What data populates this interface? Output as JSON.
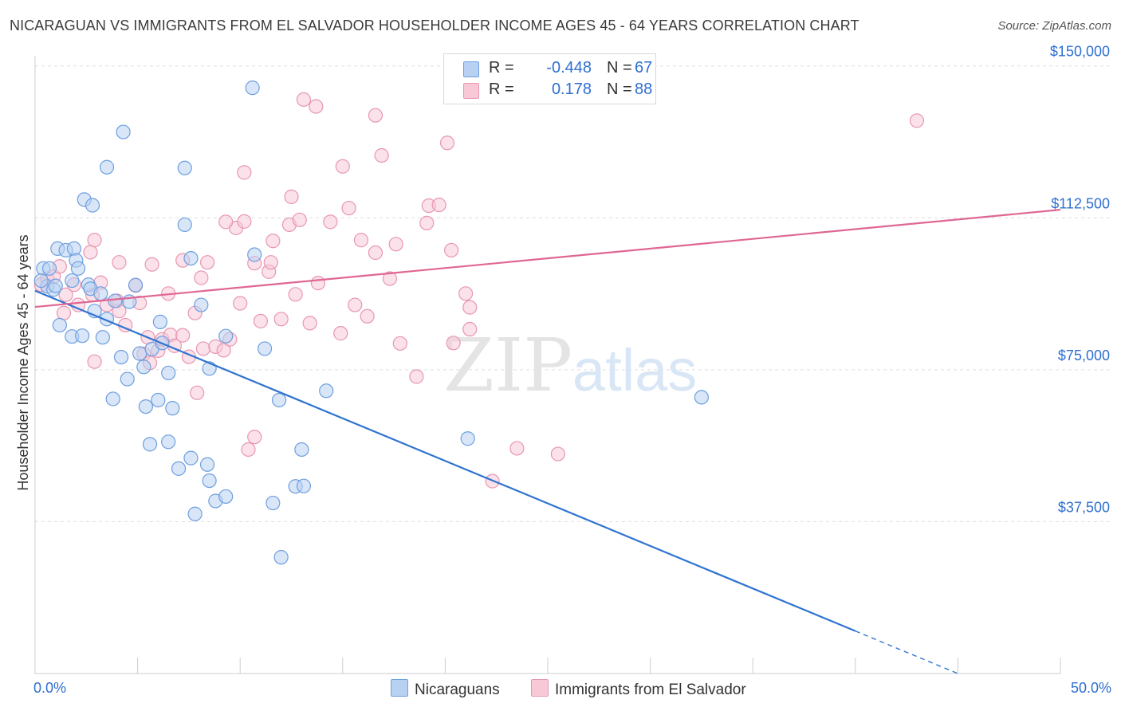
{
  "title": "NICARAGUAN VS IMMIGRANTS FROM EL SALVADOR HOUSEHOLDER INCOME AGES 45 - 64 YEARS CORRELATION CHART",
  "source": "Source: ZipAtlas.com",
  "watermark": {
    "zip": "ZIP",
    "atlas": "atlas"
  },
  "legend": {
    "rows": [
      {
        "r_label": "R =",
        "r_value": "-0.448",
        "n_label": "N =",
        "n_value": "67"
      },
      {
        "r_label": "R =",
        "r_value": "0.178",
        "n_label": "N =",
        "n_value": "88"
      }
    ]
  },
  "bottom_legend": [
    "Nicaraguans",
    "Immigrants from El Salvador"
  ],
  "colors": {
    "blue_fill": "#b8d1f3",
    "blue_stroke": "#6e9fdf",
    "blue_line": "#2f74d0",
    "pink_fill": "#f8c8d7",
    "pink_stroke": "#e897b1",
    "pink_line": "#e06694",
    "tick_label": "#2e6fd1",
    "grid": "#dedede"
  },
  "chart_data": {
    "type": "scatter",
    "title": "NICARAGUAN VS IMMIGRANTS FROM EL SALVADOR HOUSEHOLDER INCOME AGES 45 - 64 YEARS CORRELATION CHART",
    "xlabel": "",
    "ylabel": "Householder Income Ages 45 - 64 years",
    "x_unit": "percent",
    "xlim": [
      0,
      50
    ],
    "ylim": [
      0,
      152500
    ],
    "x_tick_labels": [
      "0.0%",
      "50.0%"
    ],
    "y_ticks": [
      {
        "value": 37500,
        "label": "$37,500"
      },
      {
        "value": 75000,
        "label": "$75,000"
      },
      {
        "value": 112500,
        "label": "$112,500"
      },
      {
        "value": 150000,
        "label": "$150,000"
      }
    ],
    "grid": true,
    "legend_position": "top-center",
    "series": [
      {
        "name": "Nicaraguans",
        "R": -0.448,
        "N": 67,
        "trend": {
          "x0": 0,
          "y0": 94500,
          "x1": 40,
          "y1": 10500,
          "dashed_to_x": 45,
          "dashed_to_y": 0
        },
        "points": [
          [
            0.4,
            100000
          ],
          [
            0.7,
            100000
          ],
          [
            0.6,
            95600
          ],
          [
            0.9,
            94800
          ],
          [
            1.0,
            95700
          ],
          [
            1.1,
            104900
          ],
          [
            1.5,
            104500
          ],
          [
            1.9,
            104900
          ],
          [
            1.8,
            97000
          ],
          [
            2.0,
            102000
          ],
          [
            2.1,
            100000
          ],
          [
            2.6,
            96000
          ],
          [
            2.7,
            95000
          ],
          [
            3.2,
            93800
          ],
          [
            1.2,
            86000
          ],
          [
            1.8,
            83200
          ],
          [
            2.3,
            83400
          ],
          [
            3.3,
            83000
          ],
          [
            2.9,
            89500
          ],
          [
            3.5,
            87500
          ],
          [
            3.9,
            92000
          ],
          [
            4.6,
            91800
          ],
          [
            4.9,
            95900
          ],
          [
            4.2,
            78100
          ],
          [
            4.5,
            72700
          ],
          [
            5.1,
            79000
          ],
          [
            5.3,
            75700
          ],
          [
            5.7,
            80100
          ],
          [
            6.1,
            86800
          ],
          [
            6.5,
            74200
          ],
          [
            6.2,
            81600
          ],
          [
            6.0,
            67500
          ],
          [
            5.4,
            65900
          ],
          [
            6.7,
            65500
          ],
          [
            3.8,
            67800
          ],
          [
            5.6,
            56600
          ],
          [
            6.5,
            57200
          ],
          [
            7.0,
            50600
          ],
          [
            7.6,
            53200
          ],
          [
            8.4,
            51600
          ],
          [
            8.5,
            47600
          ],
          [
            8.8,
            42600
          ],
          [
            9.3,
            43700
          ],
          [
            7.8,
            39400
          ],
          [
            9.3,
            83300
          ],
          [
            8.1,
            91000
          ],
          [
            8.5,
            75300
          ],
          [
            11.2,
            80200
          ],
          [
            11.9,
            67500
          ],
          [
            13.0,
            55300
          ],
          [
            12.7,
            46200
          ],
          [
            13.1,
            46300
          ],
          [
            11.6,
            42100
          ],
          [
            12.0,
            28700
          ],
          [
            14.2,
            69800
          ],
          [
            10.7,
            103400
          ],
          [
            7.3,
            110800
          ],
          [
            7.6,
            102500
          ],
          [
            7.3,
            124800
          ],
          [
            10.6,
            144600
          ],
          [
            3.5,
            125000
          ],
          [
            4.3,
            133700
          ],
          [
            2.4,
            117000
          ],
          [
            2.8,
            115600
          ],
          [
            21.1,
            58000
          ],
          [
            32.5,
            68200
          ],
          [
            0.3,
            97000
          ]
        ]
      },
      {
        "name": "Immigrants from El Salvador",
        "R": 0.178,
        "N": 88,
        "trend": {
          "x0": 0,
          "y0": 90500,
          "x1": 50,
          "y1": 114500
        },
        "points": [
          [
            0.3,
            96000
          ],
          [
            0.6,
            97500
          ],
          [
            0.9,
            98000
          ],
          [
            1.2,
            100500
          ],
          [
            1.5,
            93500
          ],
          [
            1.9,
            96000
          ],
          [
            2.1,
            91000
          ],
          [
            2.7,
            104000
          ],
          [
            2.8,
            93500
          ],
          [
            2.9,
            107000
          ],
          [
            3.2,
            96500
          ],
          [
            1.4,
            89000
          ],
          [
            2.9,
            77000
          ],
          [
            3.5,
            91000
          ],
          [
            4.0,
            92000
          ],
          [
            4.1,
            89500
          ],
          [
            4.4,
            86000
          ],
          [
            4.1,
            101500
          ],
          [
            4.9,
            95800
          ],
          [
            5.1,
            91500
          ],
          [
            5.3,
            78900
          ],
          [
            5.5,
            83000
          ],
          [
            5.6,
            76700
          ],
          [
            5.7,
            101000
          ],
          [
            6.0,
            79700
          ],
          [
            6.2,
            82500
          ],
          [
            6.5,
            93800
          ],
          [
            6.6,
            83600
          ],
          [
            6.8,
            80900
          ],
          [
            7.2,
            102000
          ],
          [
            7.5,
            78200
          ],
          [
            7.8,
            89000
          ],
          [
            7.9,
            69300
          ],
          [
            8.2,
            80200
          ],
          [
            8.1,
            97700
          ],
          [
            8.4,
            101500
          ],
          [
            8.8,
            80700
          ],
          [
            9.2,
            79800
          ],
          [
            9.5,
            82500
          ],
          [
            9.8,
            110000
          ],
          [
            9.3,
            111500
          ],
          [
            10.2,
            111600
          ],
          [
            10.0,
            91400
          ],
          [
            10.2,
            123700
          ],
          [
            10.7,
            101300
          ],
          [
            10.7,
            58400
          ],
          [
            10.4,
            55300
          ],
          [
            11.0,
            87000
          ],
          [
            11.4,
            99200
          ],
          [
            11.5,
            101500
          ],
          [
            11.6,
            106800
          ],
          [
            12.0,
            87500
          ],
          [
            12.4,
            110800
          ],
          [
            12.5,
            117700
          ],
          [
            12.7,
            93600
          ],
          [
            12.9,
            112000
          ],
          [
            13.1,
            141700
          ],
          [
            13.4,
            86500
          ],
          [
            13.8,
            96400
          ],
          [
            13.7,
            140000
          ],
          [
            14.4,
            111500
          ],
          [
            14.9,
            84000
          ],
          [
            15.0,
            125200
          ],
          [
            15.3,
            114900
          ],
          [
            15.6,
            91000
          ],
          [
            15.9,
            107000
          ],
          [
            16.2,
            88200
          ],
          [
            16.6,
            103900
          ],
          [
            16.6,
            137800
          ],
          [
            16.9,
            127900
          ],
          [
            17.3,
            97500
          ],
          [
            17.6,
            106000
          ],
          [
            17.8,
            81500
          ],
          [
            18.6,
            73300
          ],
          [
            19.1,
            111200
          ],
          [
            19.2,
            115500
          ],
          [
            19.7,
            115700
          ],
          [
            20.1,
            131000
          ],
          [
            20.3,
            104500
          ],
          [
            20.4,
            81600
          ],
          [
            21.0,
            93800
          ],
          [
            21.2,
            90400
          ],
          [
            21.2,
            85000
          ],
          [
            22.3,
            47500
          ],
          [
            23.5,
            55600
          ],
          [
            25.5,
            54200
          ],
          [
            43.0,
            136500
          ],
          [
            7.2,
            83500
          ]
        ]
      }
    ]
  }
}
